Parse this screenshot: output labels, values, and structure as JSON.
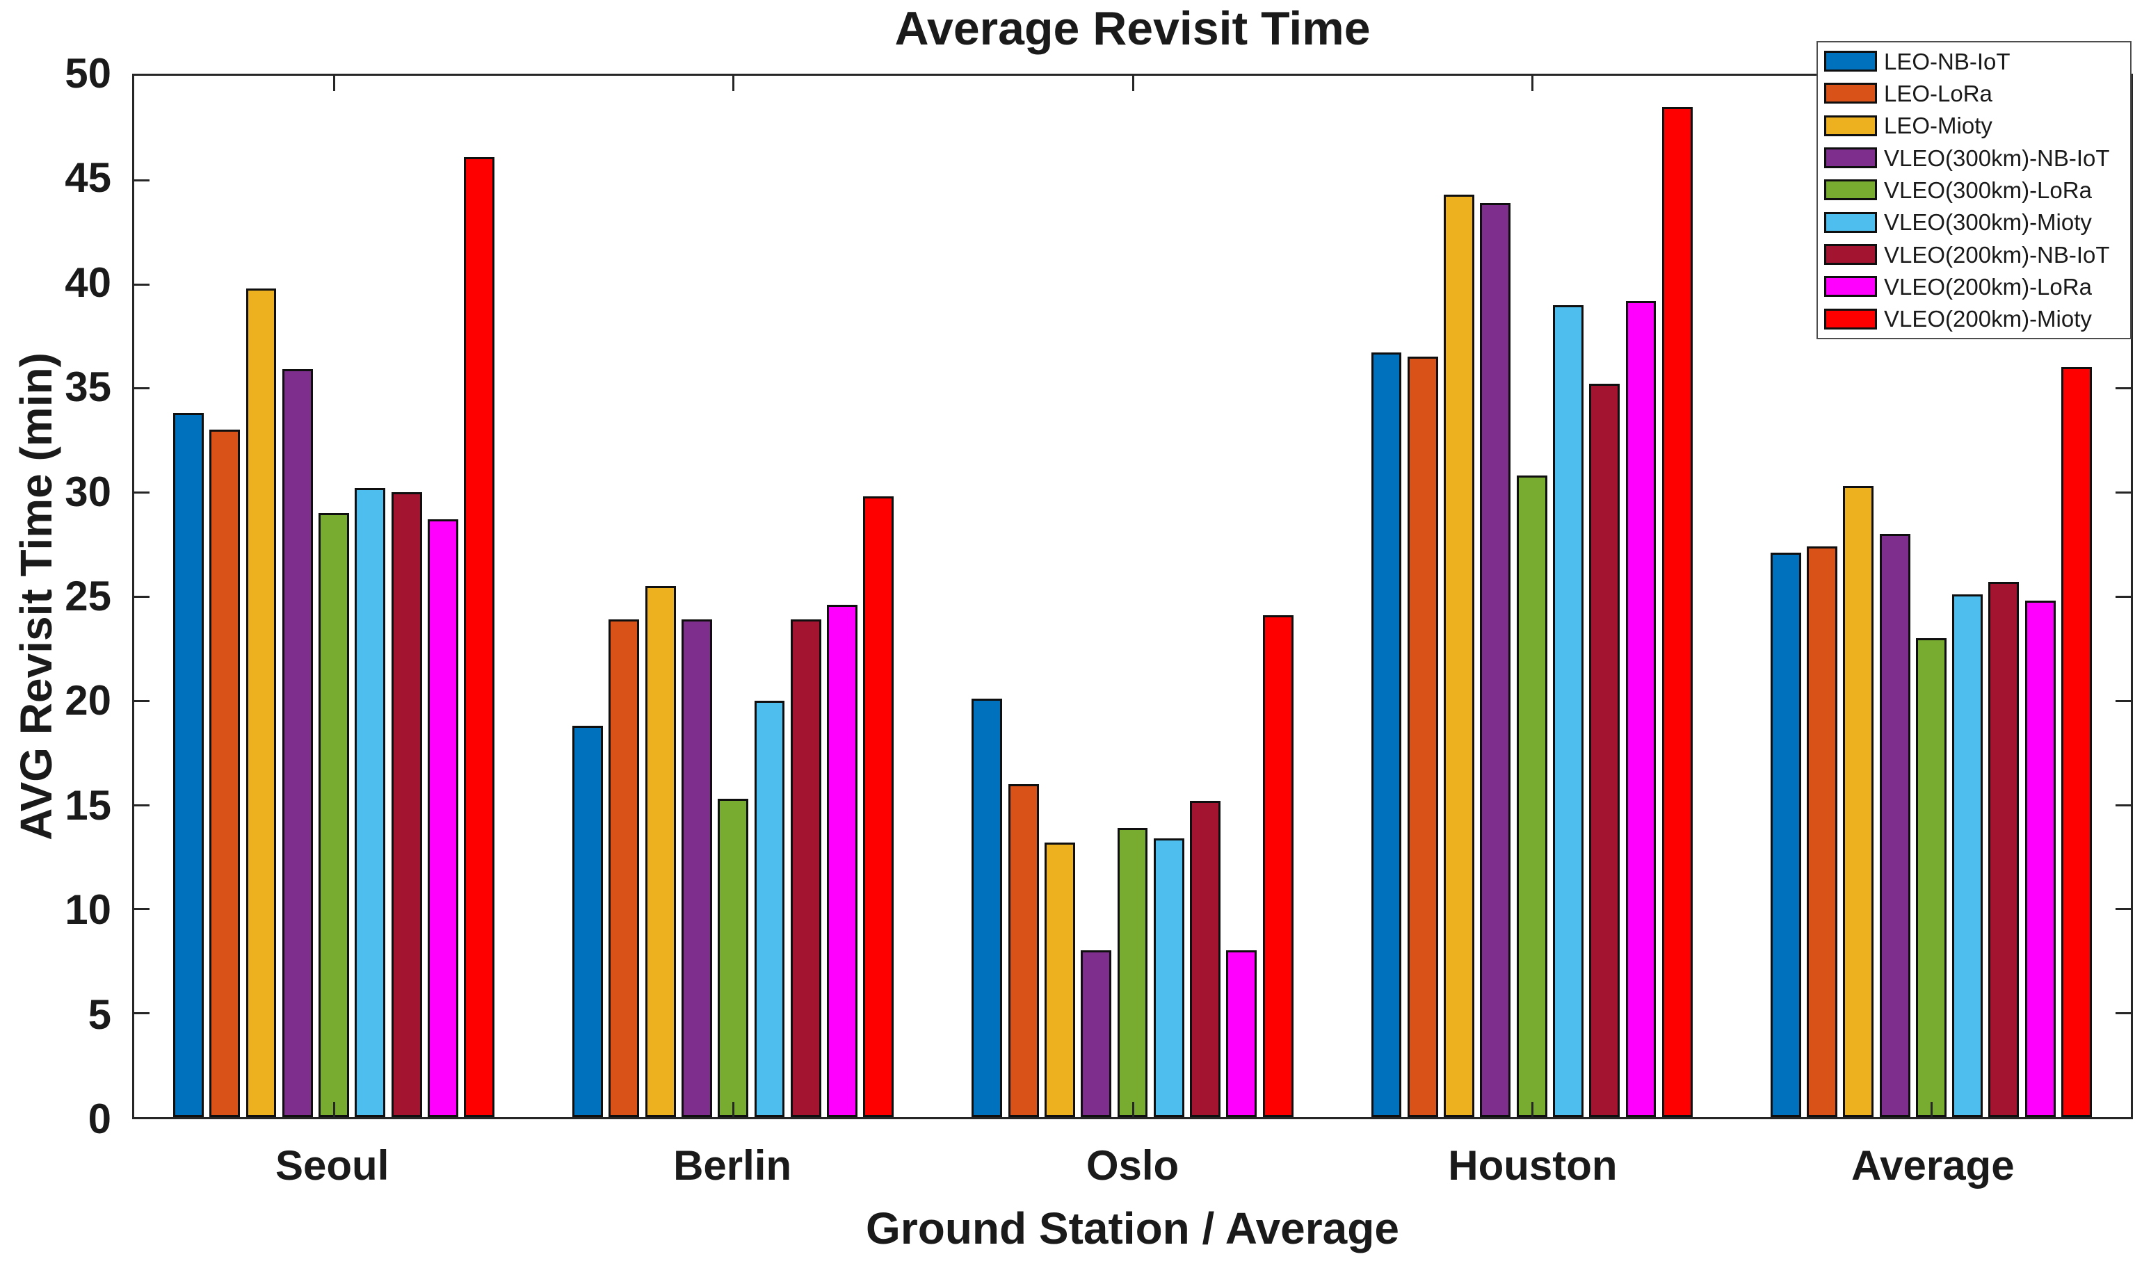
{
  "title": "Average Revisit Time",
  "axes": {
    "x_label": "Ground Station / Average",
    "y_label": "AVG Revisit Time (min)"
  },
  "chart_data": {
    "type": "bar",
    "title": "Average Revisit Time",
    "xlabel": "Ground Station / Average",
    "ylabel": "AVG Revisit Time (min)",
    "ylim": [
      0,
      50
    ],
    "yticks": [
      0,
      5,
      10,
      15,
      20,
      25,
      30,
      35,
      40,
      45,
      50
    ],
    "grid": false,
    "legend_position": "top-right-inside",
    "categories": [
      "Seoul",
      "Berlin",
      "Oslo",
      "Houston",
      "Average"
    ],
    "series": [
      {
        "name": "LEO-NB-IoT",
        "color": "#0072BD",
        "values": [
          33.8,
          18.8,
          20.1,
          36.7,
          27.1
        ]
      },
      {
        "name": "LEO-LoRa",
        "color": "#D95319",
        "values": [
          33.0,
          23.9,
          16.0,
          36.5,
          27.4
        ]
      },
      {
        "name": "LEO-Mioty",
        "color": "#EDB120",
        "values": [
          39.8,
          25.5,
          13.2,
          44.3,
          30.3
        ]
      },
      {
        "name": "VLEO(300km)-NB-IoT",
        "color": "#7E2F8E",
        "values": [
          35.9,
          23.9,
          8.0,
          43.9,
          28.0
        ]
      },
      {
        "name": "VLEO(300km)-LoRa",
        "color": "#77AC30",
        "values": [
          29.0,
          15.3,
          13.9,
          30.8,
          23.0
        ]
      },
      {
        "name": "VLEO(300km)-Mioty",
        "color": "#4DBEEE",
        "values": [
          30.2,
          20.0,
          13.4,
          39.0,
          25.1
        ]
      },
      {
        "name": "VLEO(200km)-NB-IoT",
        "color": "#A2142F",
        "values": [
          30.0,
          23.9,
          15.2,
          35.2,
          25.7
        ]
      },
      {
        "name": "VLEO(200km)-LoRa",
        "color": "#FF00FF",
        "values": [
          28.7,
          24.6,
          8.0,
          39.2,
          24.8
        ]
      },
      {
        "name": "VLEO(200km)-Mioty",
        "color": "#FF0000",
        "values": [
          46.1,
          29.8,
          24.1,
          48.5,
          36.0
        ]
      }
    ]
  }
}
